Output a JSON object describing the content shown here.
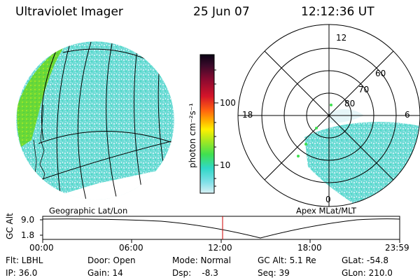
{
  "header": {
    "instrument": "Ultraviolet Imager",
    "date": "25 Jun 07",
    "time": "12:12:36 UT"
  },
  "left_panel": {
    "caption": "Geographic Lat/Lon"
  },
  "right_panel": {
    "caption": "Apex MLat/MLT",
    "mlt_labels": {
      "top": "12",
      "left": "18",
      "right": "6",
      "bottom": "0"
    },
    "lat_labels": [
      "60",
      "70",
      "80"
    ]
  },
  "colorbar": {
    "unit_label": "photon cm⁻²s⁻¹",
    "ticks": [
      "100",
      "10"
    ],
    "colors": [
      "#0a0214",
      "#3c0a2a",
      "#8a0a30",
      "#d4142a",
      "#ff6010",
      "#ffa800",
      "#fff000",
      "#a8e820",
      "#40e050",
      "#30d8c8",
      "#80e0e8",
      "#d8f0f4"
    ]
  },
  "altitude_plot": {
    "ylabel": "GC Alt",
    "yticks": [
      "9.0",
      "1.8"
    ],
    "xticks": [
      "00:00",
      "06:00",
      "12:00",
      "18:00",
      "23:59"
    ],
    "marker_color": "#cc0000"
  },
  "footer": {
    "rows": [
      [
        "Flt: LBHL",
        "Door: Open",
        "Mode: Normal",
        "GC Alt: 5.1 Re",
        "GLat: -54.8"
      ],
      [
        "IP: 36.0",
        "Gain: 14",
        "Dsp:    -8.3",
        "Seq: 39",
        "GLon: 210.0"
      ]
    ]
  }
}
